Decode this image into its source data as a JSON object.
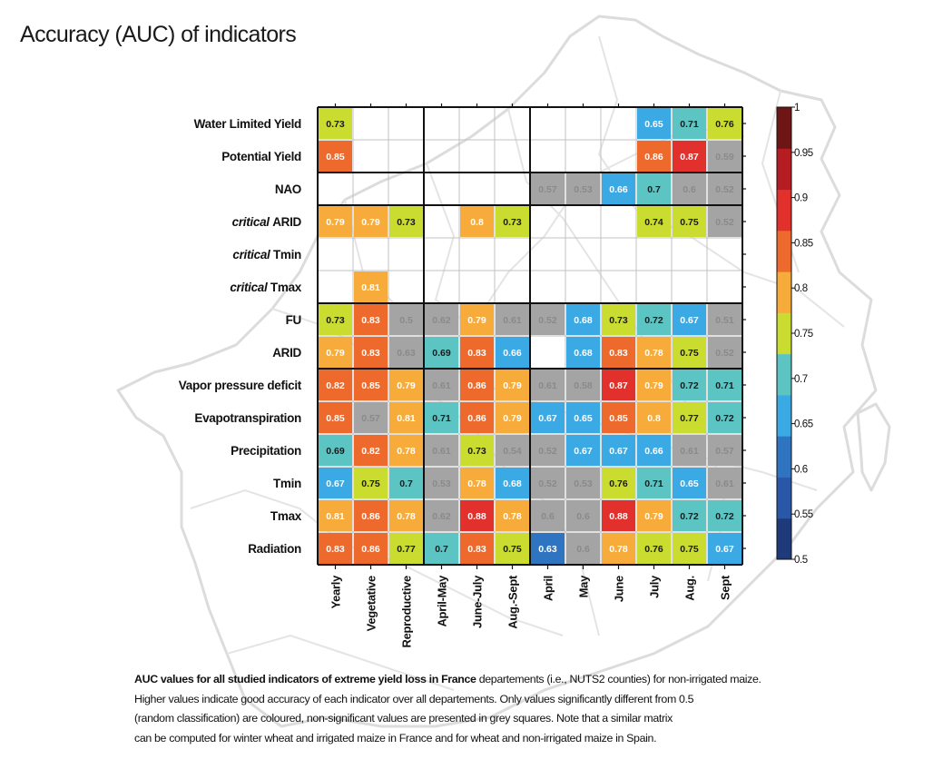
{
  "title": "Accuracy (AUC) of indicators",
  "chart_data": {
    "type": "heatmap",
    "title": "Accuracy (AUC) of indicators",
    "columns": [
      "Yearly",
      "Vegetative",
      "Reproductive",
      "April-May",
      "June-July",
      "Aug.-Sept",
      "April",
      "May",
      "June",
      "July",
      "Aug.",
      "Sept"
    ],
    "rows": [
      {
        "label": "Water Limited Yield",
        "italic": "",
        "values": [
          0.73,
          null,
          null,
          null,
          null,
          null,
          null,
          null,
          null,
          0.65,
          0.71,
          0.76
        ],
        "grey": [
          false,
          false,
          false,
          false,
          false,
          false,
          false,
          false,
          false,
          false,
          false,
          false
        ]
      },
      {
        "label": "Potential Yield",
        "italic": "",
        "values": [
          0.85,
          null,
          null,
          null,
          null,
          null,
          null,
          null,
          null,
          0.86,
          0.87,
          0.59
        ],
        "grey": [
          false,
          false,
          false,
          false,
          false,
          false,
          false,
          false,
          false,
          false,
          false,
          true
        ]
      },
      {
        "label": "NAO",
        "italic": "",
        "values": [
          null,
          null,
          null,
          null,
          null,
          null,
          0.57,
          0.53,
          0.66,
          0.7,
          0.6,
          0.52
        ],
        "grey": [
          false,
          false,
          false,
          false,
          false,
          false,
          true,
          true,
          false,
          false,
          true,
          true
        ]
      },
      {
        "label": "ARID",
        "italic": "critical",
        "values": [
          0.79,
          0.79,
          0.73,
          null,
          0.8,
          0.73,
          null,
          null,
          null,
          0.74,
          0.75,
          0.52
        ],
        "grey": [
          false,
          false,
          false,
          false,
          false,
          false,
          false,
          false,
          false,
          false,
          false,
          true
        ]
      },
      {
        "label": "Tmin",
        "italic": "critical",
        "values": [
          null,
          null,
          null,
          null,
          null,
          null,
          null,
          null,
          null,
          null,
          null,
          null
        ],
        "grey": [
          false,
          false,
          false,
          false,
          false,
          false,
          false,
          false,
          false,
          false,
          false,
          false
        ]
      },
      {
        "label": "Tmax",
        "italic": "critical",
        "values": [
          null,
          0.81,
          null,
          null,
          null,
          null,
          null,
          null,
          null,
          null,
          null,
          null
        ],
        "grey": [
          false,
          false,
          false,
          false,
          false,
          false,
          false,
          false,
          false,
          false,
          false,
          false
        ]
      },
      {
        "label": "FU",
        "italic": "",
        "values": [
          0.73,
          0.83,
          0.5,
          0.62,
          0.79,
          0.61,
          0.52,
          0.68,
          0.73,
          0.72,
          0.67,
          0.51
        ],
        "grey": [
          false,
          false,
          true,
          true,
          false,
          true,
          true,
          false,
          false,
          false,
          false,
          true
        ]
      },
      {
        "label": "ARID",
        "italic": "",
        "values": [
          0.79,
          0.83,
          0.63,
          0.69,
          0.83,
          0.66,
          null,
          0.68,
          0.83,
          0.78,
          0.75,
          0.52
        ],
        "grey": [
          false,
          false,
          true,
          false,
          false,
          false,
          false,
          false,
          false,
          false,
          false,
          true
        ]
      },
      {
        "label": "Vapor pressure deficit",
        "italic": "",
        "values": [
          0.82,
          0.85,
          0.79,
          0.61,
          0.86,
          0.79,
          0.61,
          0.58,
          0.87,
          0.79,
          0.72,
          0.71
        ],
        "grey": [
          false,
          false,
          false,
          true,
          false,
          false,
          true,
          true,
          false,
          false,
          false,
          false
        ]
      },
      {
        "label": "Evapotranspiration",
        "italic": "",
        "values": [
          0.85,
          0.57,
          0.81,
          0.71,
          0.86,
          0.79,
          0.67,
          0.65,
          0.85,
          0.8,
          0.77,
          0.72
        ],
        "grey": [
          false,
          true,
          false,
          false,
          false,
          false,
          false,
          false,
          false,
          false,
          false,
          false
        ]
      },
      {
        "label": "Precipitation",
        "italic": "",
        "values": [
          0.69,
          0.82,
          0.78,
          0.61,
          0.73,
          0.54,
          0.52,
          0.67,
          0.67,
          0.66,
          0.61,
          0.57
        ],
        "grey": [
          false,
          false,
          false,
          true,
          false,
          true,
          true,
          false,
          false,
          false,
          true,
          true
        ]
      },
      {
        "label": "Tmin",
        "italic": "",
        "values": [
          0.67,
          0.75,
          0.7,
          0.53,
          0.78,
          0.68,
          0.52,
          0.53,
          0.76,
          0.71,
          0.65,
          0.61
        ],
        "grey": [
          false,
          false,
          false,
          true,
          false,
          false,
          true,
          true,
          false,
          false,
          false,
          true
        ]
      },
      {
        "label": "Tmax",
        "italic": "",
        "values": [
          0.81,
          0.86,
          0.78,
          0.62,
          0.88,
          0.78,
          0.6,
          0.6,
          0.88,
          0.79,
          0.72,
          0.72
        ],
        "grey": [
          false,
          false,
          false,
          true,
          false,
          false,
          true,
          true,
          false,
          false,
          false,
          false
        ]
      },
      {
        "label": "Radiation",
        "italic": "",
        "values": [
          0.83,
          0.86,
          0.77,
          0.7,
          0.83,
          0.75,
          0.63,
          0.6,
          0.78,
          0.76,
          0.75,
          0.67
        ],
        "grey": [
          false,
          false,
          false,
          false,
          false,
          false,
          false,
          true,
          false,
          false,
          false,
          false
        ]
      }
    ],
    "colorbar": {
      "range": [
        0.5,
        1
      ],
      "tick_labels": [
        "1",
        "0.95",
        "0.9",
        "0.85",
        "0.8",
        "0.75",
        "0.7",
        "0.65",
        "0.6",
        "0.55",
        "0.5"
      ],
      "colors": [
        "#1f3a7a",
        "#2a58a8",
        "#2f74c0",
        "#3ba9e3",
        "#5cc5c4",
        "#c9dc2f",
        "#f7ab3a",
        "#ee6a2c",
        "#e2302c",
        "#b51d23",
        "#6e1616"
      ]
    },
    "grey_color": "#a4a4a4",
    "dark_text_bins": [
      4,
      5
    ]
  },
  "caption": {
    "line1_bold": "AUC values for all studied indicators of extreme yield loss in France",
    "line1_rest": " departements (i.e., NUTS2 counties) for non-irrigated maize.",
    "line2": "Higher values indicate good accuracy of each indicator over all departements. Only values significantly different from 0.5",
    "line3": "(random classification) are coloured, non-significant values are presented in grey squares. Note that a similar matrix",
    "line4": "can be computed for winter wheat and irrigated maize in France and for wheat and non-irrigated maize in Spain."
  }
}
